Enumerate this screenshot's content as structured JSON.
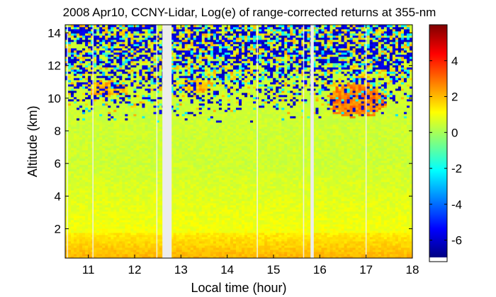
{
  "chart_data": {
    "type": "heatmap",
    "title": "2008 Apr10, CCNY-Lidar, Log(e) of range-corrected returns at 355-nm",
    "xlabel": "Local time (hour)",
    "ylabel": "Altitude (km)",
    "xlim": [
      10.5,
      18
    ],
    "ylim": [
      0.2,
      14.5
    ],
    "xticks": [
      11,
      12,
      13,
      14,
      15,
      16,
      17,
      18
    ],
    "yticks": [
      2,
      4,
      6,
      8,
      10,
      12,
      14
    ],
    "colorbar": {
      "range": [
        -7,
        6
      ],
      "ticks": [
        4,
        2,
        0,
        -2,
        -4,
        -6
      ],
      "colormap": "jet"
    },
    "data_gaps": [
      [
        12.6,
        12.8
      ],
      [
        15.8,
        15.87
      ]
    ],
    "thin_gaps": [
      10.55,
      11.1,
      12.48,
      14.65,
      15.65,
      17.0
    ],
    "features": {
      "boundary_layer": {
        "top_km": 1.8,
        "value": 2.2
      },
      "free_troposphere": {
        "value": 0.5
      },
      "noise_onset_km": 8.5,
      "noise_full_km": 12.5,
      "clouds": [
        {
          "x": [
            10.9,
            12.0
          ],
          "y": [
            10.0,
            11.2
          ],
          "value": 1.8
        },
        {
          "x": [
            12.9,
            13.8
          ],
          "y": [
            10.2,
            11.3
          ],
          "value": 1.8
        },
        {
          "x": [
            16.0,
            17.6
          ],
          "y": [
            8.6,
            11.2
          ],
          "value": 2.5
        }
      ]
    }
  }
}
